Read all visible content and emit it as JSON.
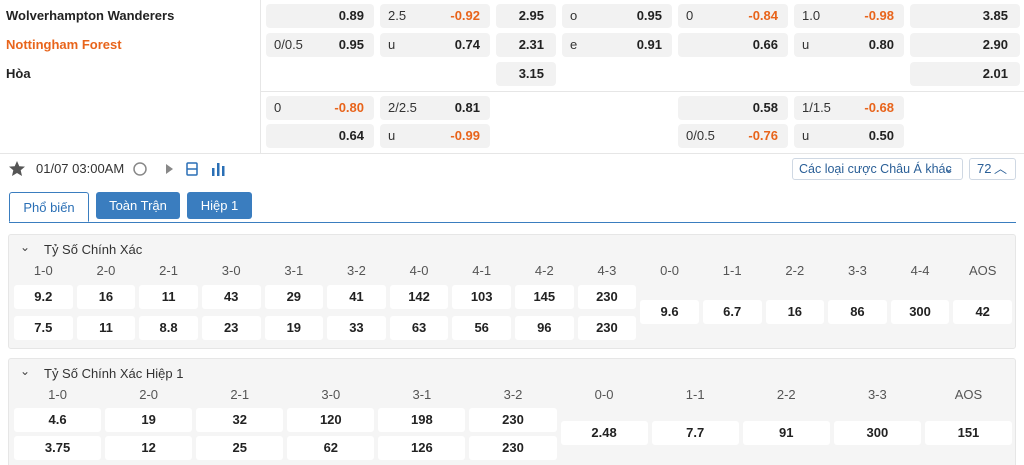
{
  "match": {
    "teams": [
      "Wolverhampton Wanderers",
      "Nottingham Forest",
      "Hòa"
    ],
    "rows": [
      [
        {
          "value": "0.89"
        },
        {
          "label": "2.5",
          "value": "-0.92"
        },
        {
          "value": "2.95"
        },
        {
          "label": "o",
          "value": "0.95"
        },
        {
          "label": "0",
          "value": "-0.84"
        },
        {
          "label": "1.0",
          "value": "-0.98"
        },
        {
          "value": "3.85"
        }
      ],
      [
        {
          "label": "0/0.5",
          "value": "0.95"
        },
        {
          "label": "u",
          "value": "0.74"
        },
        {
          "value": "2.31"
        },
        {
          "label": "e",
          "value": "0.91"
        },
        {
          "value": "0.66"
        },
        {
          "label": "u",
          "value": "0.80"
        },
        {
          "value": "2.90"
        }
      ],
      [
        null,
        null,
        {
          "value": "3.15"
        },
        null,
        null,
        null,
        {
          "value": "2.01"
        }
      ],
      [
        {
          "label": "0",
          "value": "-0.80"
        },
        {
          "label": "2/2.5",
          "value": "0.81"
        },
        null,
        null,
        {
          "value": "0.58"
        },
        {
          "label": "1/1.5",
          "value": "-0.68"
        },
        null
      ],
      [
        {
          "value": "0.64"
        },
        {
          "label": "u",
          "value": "-0.99"
        },
        null,
        null,
        {
          "label": "0/0.5",
          "value": "-0.76"
        },
        {
          "label": "u",
          "value": "0.50"
        },
        null
      ]
    ]
  },
  "toolbar": {
    "datetime": "01/07 03:00AM",
    "market_select": "Các loại cược Châu Á khác",
    "count": "72"
  },
  "tabs": [
    "Phổ biến",
    "Toàn Trận",
    "Hiệp 1"
  ],
  "sections": [
    {
      "title": "Tỷ Số Chính Xác",
      "columns": [
        {
          "label": "1-0",
          "values": [
            9.2,
            7.5
          ]
        },
        {
          "label": "2-0",
          "values": [
            16,
            11
          ]
        },
        {
          "label": "2-1",
          "values": [
            11,
            8.8
          ]
        },
        {
          "label": "3-0",
          "values": [
            43,
            23
          ]
        },
        {
          "label": "3-1",
          "values": [
            29,
            19
          ]
        },
        {
          "label": "3-2",
          "values": [
            41,
            33
          ]
        },
        {
          "label": "4-0",
          "values": [
            142,
            63
          ]
        },
        {
          "label": "4-1",
          "values": [
            103,
            56
          ]
        },
        {
          "label": "4-2",
          "values": [
            145,
            96
          ]
        },
        {
          "label": "4-3",
          "values": [
            230,
            230
          ]
        },
        {
          "label": "0-0",
          "values": [
            9.6
          ]
        },
        {
          "label": "1-1",
          "values": [
            6.7
          ]
        },
        {
          "label": "2-2",
          "values": [
            16
          ]
        },
        {
          "label": "3-3",
          "values": [
            86
          ]
        },
        {
          "label": "4-4",
          "values": [
            300
          ]
        },
        {
          "label": "AOS",
          "values": [
            42
          ]
        }
      ]
    },
    {
      "title": "Tỷ Số Chính Xác Hiệp 1",
      "columns": [
        {
          "label": "1-0",
          "values": [
            4.6,
            3.75
          ]
        },
        {
          "label": "2-0",
          "values": [
            19,
            12
          ]
        },
        {
          "label": "2-1",
          "values": [
            32,
            25
          ]
        },
        {
          "label": "3-0",
          "values": [
            120,
            62
          ]
        },
        {
          "label": "3-1",
          "values": [
            198,
            126
          ]
        },
        {
          "label": "3-2",
          "values": [
            230,
            230
          ]
        },
        {
          "label": "0-0",
          "values": [
            2.48
          ]
        },
        {
          "label": "1-1",
          "values": [
            7.7
          ]
        },
        {
          "label": "2-2",
          "values": [
            91
          ]
        },
        {
          "label": "3-3",
          "values": [
            300
          ]
        },
        {
          "label": "AOS",
          "values": [
            151
          ]
        }
      ]
    }
  ]
}
